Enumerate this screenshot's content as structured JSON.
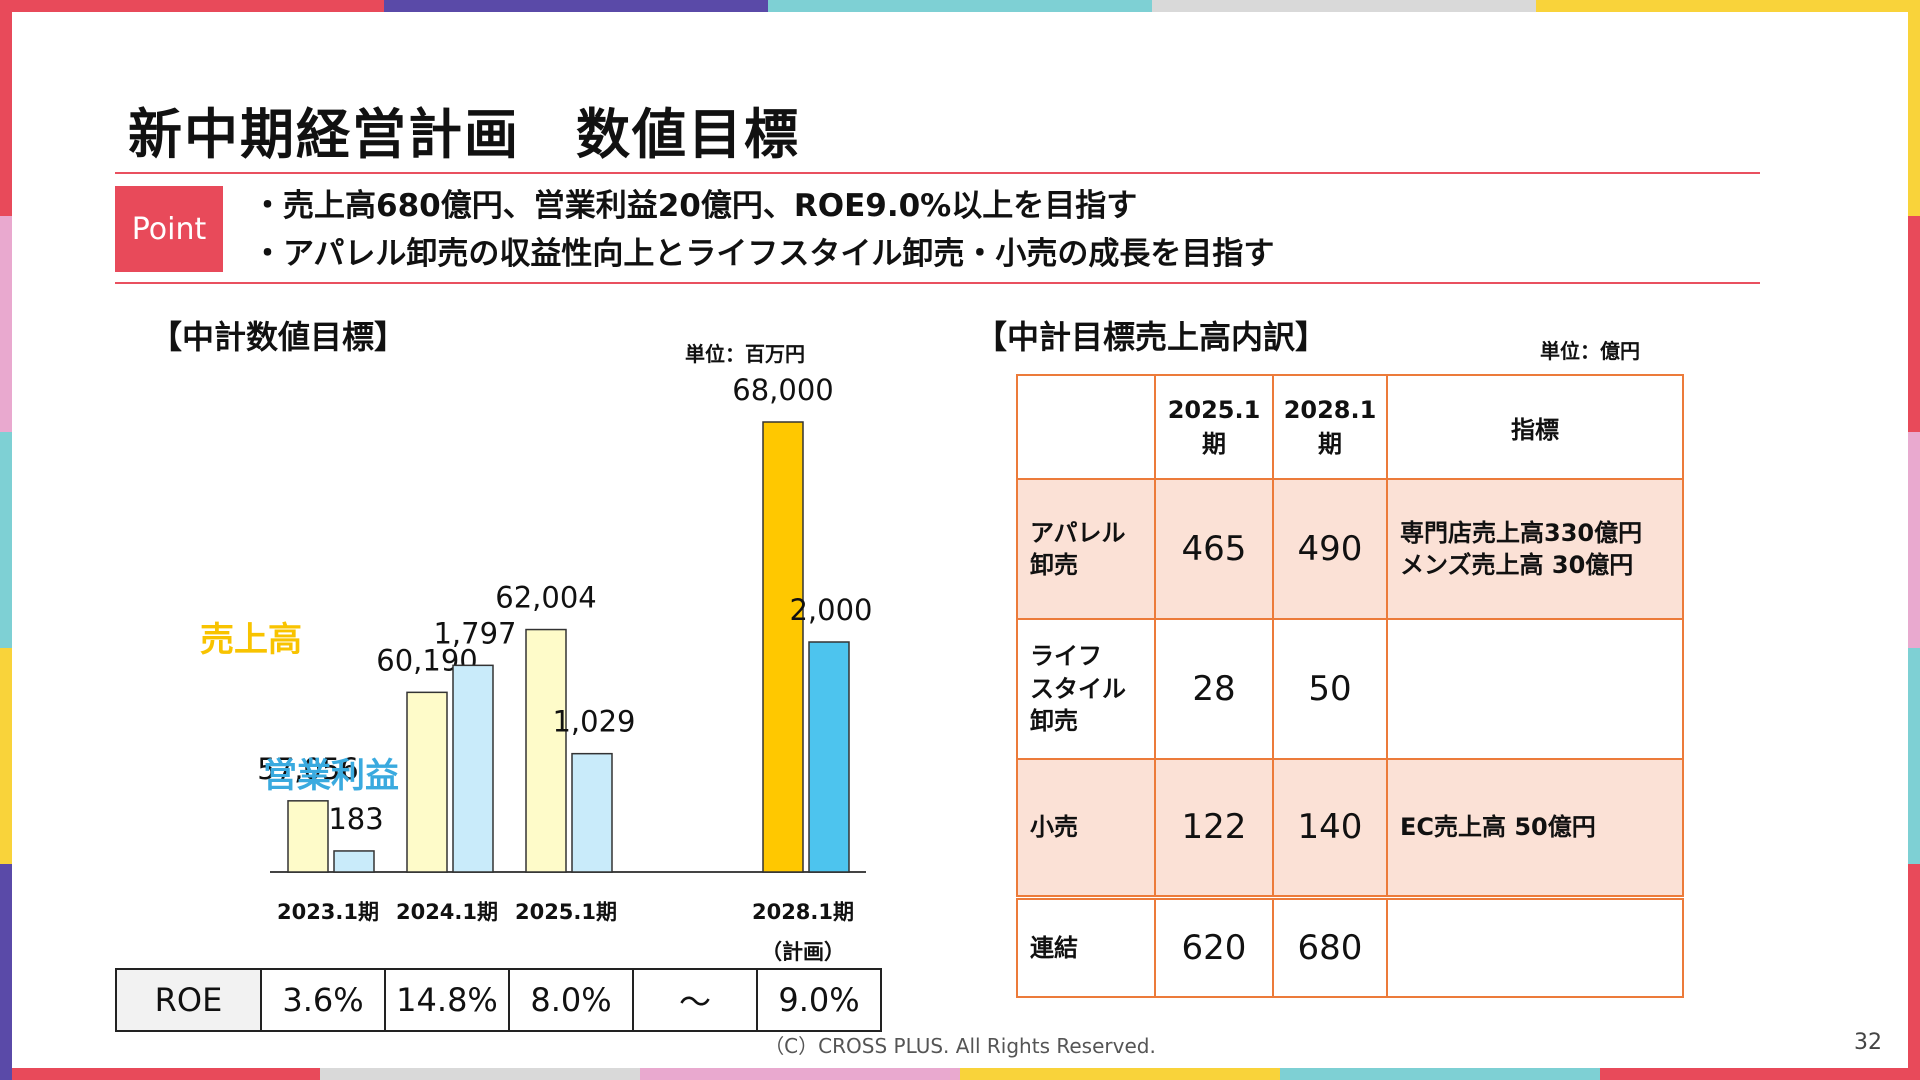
{
  "title": "新中期経営計画　数値目標",
  "point": {
    "label": "Point",
    "lines": [
      "・売上高680億円、営業利益20億円、ROE9.0%以上を目指す",
      "・アパレル卸売の収益性向上とライフスタイル卸売・小売の成長を目指す"
    ]
  },
  "left_section": {
    "heading": "【中計数値目標】",
    "unit": "単位：百万円"
  },
  "right_section": {
    "heading": "【中計目標売上高内訳】",
    "unit": "単位：億円"
  },
  "legend": {
    "sales": "売上高",
    "profit": "営業利益"
  },
  "colors": {
    "sales_bar": "#fefbc9",
    "sales_bar_plan": "#ffc800",
    "profit_bar": "#c9ebfa",
    "profit_bar_plan": "#4dc4ee",
    "sales_legend": "#f8c300",
    "profit_legend": "#3aaadf",
    "point_red": "#e84a5a",
    "table_border": "#ec7b3a",
    "table_shade": "#fbe1d6"
  },
  "chart_data": {
    "type": "bar",
    "categories": [
      "2023.1期",
      "2024.1期",
      "2025.1期",
      "2028.1期"
    ],
    "category_sub": [
      "",
      "",
      "",
      "（計画）"
    ],
    "series": [
      {
        "name": "売上高",
        "values": [
          57056,
          60190,
          62004,
          68000
        ],
        "labels": [
          "57,056",
          "60,190",
          "62,004",
          "68,000"
        ]
      },
      {
        "name": "営業利益",
        "values": [
          183,
          1797,
          1029,
          2000
        ],
        "labels": [
          "183",
          "1,797",
          "1,029",
          "2,000"
        ]
      }
    ],
    "unit": "単位：百万円"
  },
  "roe": {
    "label": "ROE",
    "values": [
      "3.6%",
      "14.8%",
      "8.0%",
      "～",
      "9.0%"
    ]
  },
  "breakdown": {
    "headers": [
      "",
      "2025.1\n期",
      "2028.1\n期",
      "指標"
    ],
    "rows": [
      {
        "name": "アパレル\n卸売",
        "v2025": "465",
        "v2028": "490",
        "note": "専門店売上高330億円\nメンズ売上高 30億円",
        "shaded": true
      },
      {
        "name": "ライフ\nスタイル\n卸売",
        "v2025": "28",
        "v2028": "50",
        "note": "",
        "shaded": false
      },
      {
        "name": "小売",
        "v2025": "122",
        "v2028": "140",
        "note": "EC売上高 50億円",
        "shaded": true
      },
      {
        "name": "連結",
        "v2025": "620",
        "v2028": "680",
        "note": "",
        "shaded": false
      }
    ]
  },
  "footer": "（C）CROSS PLUS. All Rights Reserved.",
  "page_number": "32"
}
